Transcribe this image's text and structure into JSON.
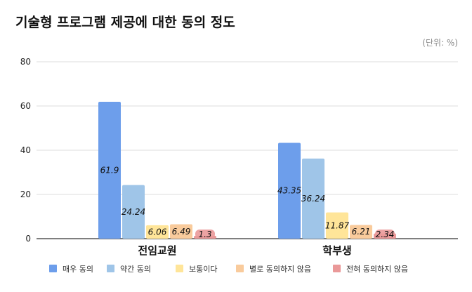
{
  "chart_data": {
    "type": "bar",
    "title": "기술형 프로그램 제공에 대한 동의 정도",
    "unit_note": "(단위: %)",
    "categories": [
      "전임교원",
      "학부생"
    ],
    "series": [
      {
        "name": "매우 동의",
        "color": "#6d9eeb",
        "values": [
          61.9,
          43.35
        ]
      },
      {
        "name": "약간 동의",
        "color": "#9fc5e8",
        "values": [
          24.24,
          36.24
        ]
      },
      {
        "name": "보통이다",
        "color": "#ffe599",
        "values": [
          6.06,
          11.87
        ]
      },
      {
        "name": "별로 동의하지 않음",
        "color": "#f9cb9c",
        "values": [
          6.49,
          6.21
        ]
      },
      {
        "name": "전혀 동의하지 않음",
        "color": "#ea9999",
        "values": [
          1.3,
          2.34
        ]
      }
    ],
    "yticks": [
      "0",
      "20",
      "40",
      "60",
      "80"
    ],
    "ylim": [
      0,
      80
    ],
    "xlabel": "",
    "ylabel": "",
    "grid": true,
    "legend": "bottom"
  }
}
